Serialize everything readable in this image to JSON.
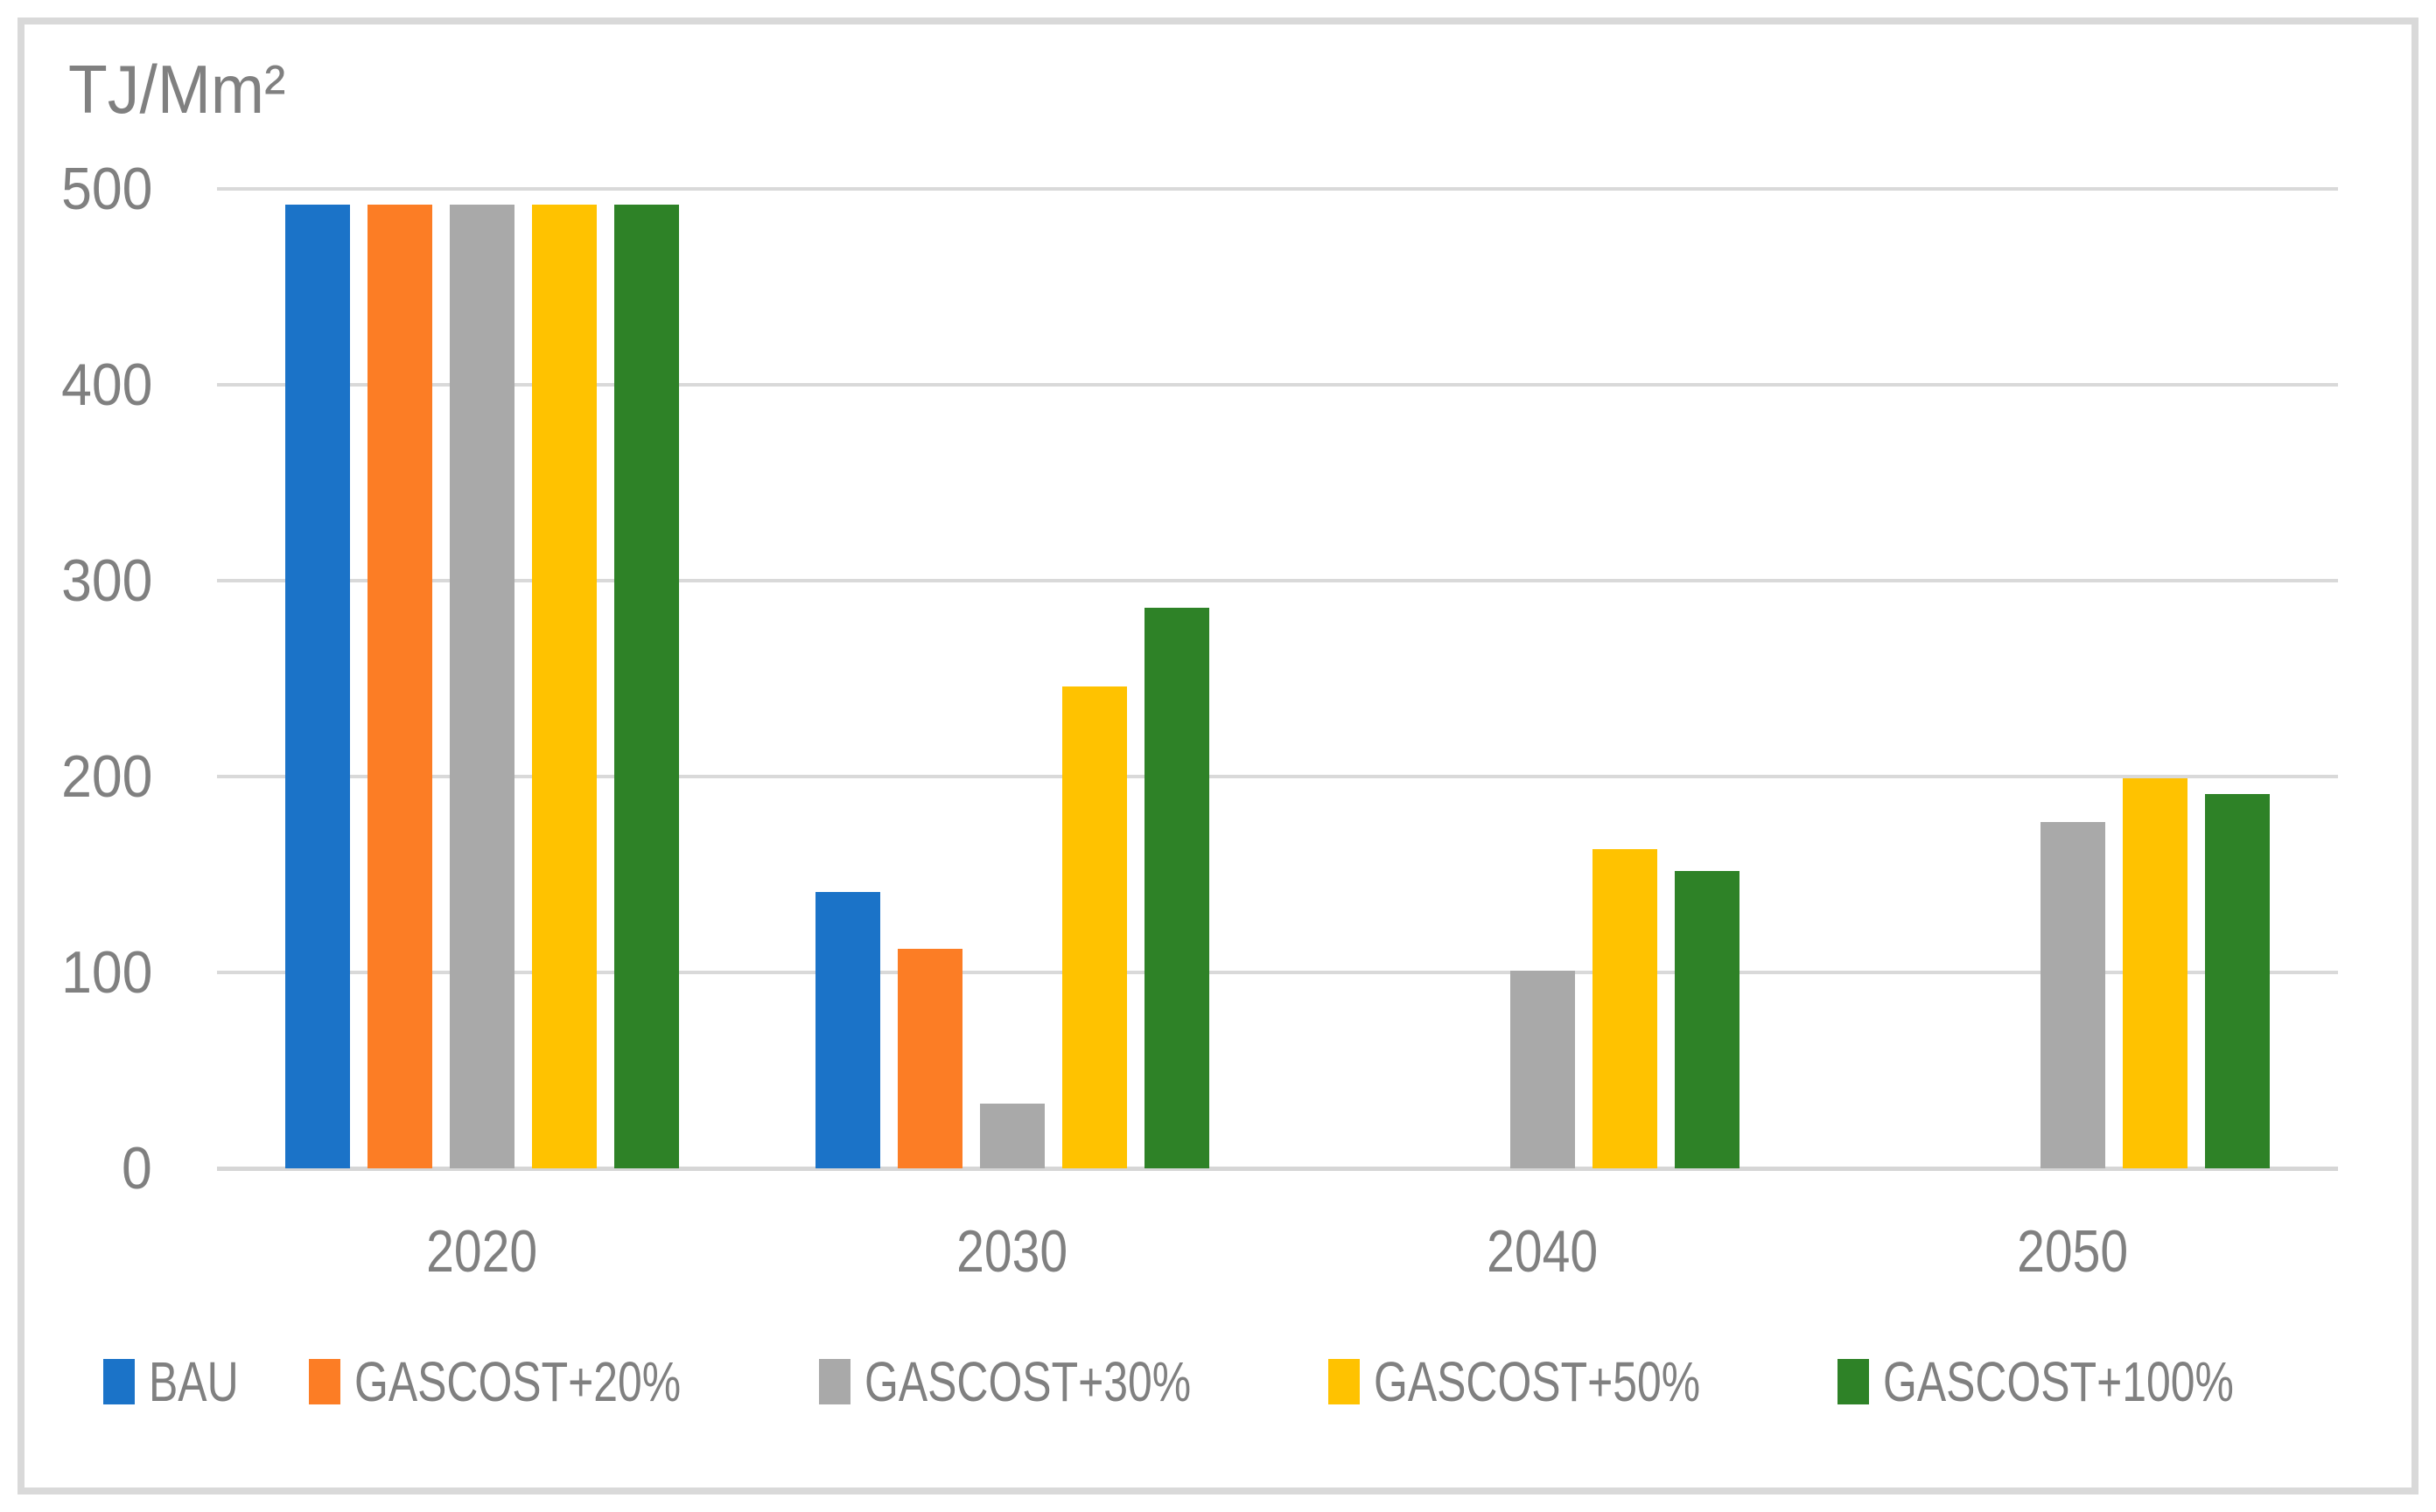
{
  "figure": {
    "background": "#FFFFFF",
    "border_color": "#D9D9D9",
    "text_color": "#808080",
    "gridline_color": "#D9D9D9"
  },
  "chart_data": {
    "type": "bar",
    "title": "",
    "ylabel": "TJ/Mm²",
    "xlabel": "",
    "categories": [
      "2020",
      "2030",
      "2040",
      "2050"
    ],
    "series": [
      {
        "name": "BAU",
        "color": "#1B73C8",
        "values": [
          492,
          141,
          0,
          0
        ]
      },
      {
        "name": "GASCOST+20%",
        "color": "#FC7D25",
        "values": [
          492,
          112,
          0,
          0
        ]
      },
      {
        "name": "GASCOST+30%",
        "color": "#A9A9A9",
        "values": [
          492,
          33,
          101,
          177
        ]
      },
      {
        "name": "GASCOST+50%",
        "color": "#FFC200",
        "values": [
          492,
          246,
          163,
          199
        ]
      },
      {
        "name": "GASCOST+100%",
        "color": "#2E8227",
        "values": [
          492,
          286,
          152,
          191
        ]
      }
    ],
    "ylim": [
      0,
      500
    ],
    "yticks": [
      0,
      100,
      200,
      300,
      400,
      500
    ],
    "grid": "horizontal",
    "legend_position": "bottom"
  }
}
